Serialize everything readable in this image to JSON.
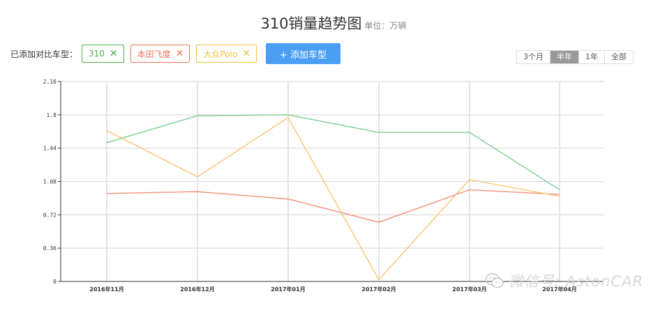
{
  "header": {
    "title": "310销量趋势图",
    "unit": "单位：万辆"
  },
  "controls": {
    "added_label": "已添加对比车型：",
    "chips": [
      {
        "label": "310",
        "color": "#4cae4c"
      },
      {
        "label": "本田飞度",
        "color": "#e8765a"
      },
      {
        "label": "大众Polo",
        "color": "#f0c040"
      }
    ],
    "remove_glyph": "✕",
    "add_button": "+ 添加车型"
  },
  "range_tabs": {
    "items": [
      "3个月",
      "半年",
      "1年",
      "全部"
    ],
    "active_index": 1
  },
  "chart_data": {
    "type": "line",
    "title": "310销量趋势图",
    "unit": "单位：万辆",
    "categories": [
      "2016年11月",
      "2016年12月",
      "2017年01月",
      "2017年02月",
      "2017年03月",
      "2017年04月"
    ],
    "yticks": [
      "0",
      "0.36",
      "0.72",
      "1.08",
      "1.44",
      "1.8",
      "2.16"
    ],
    "ylim": [
      0,
      2.16
    ],
    "grid": true,
    "series": [
      {
        "name": "310",
        "color": "#7ccd8c",
        "values": [
          1.5,
          1.79,
          1.8,
          1.61,
          1.61,
          0.99
        ]
      },
      {
        "name": "本田飞度",
        "color": "#f0907a",
        "values": [
          0.95,
          0.97,
          0.89,
          0.64,
          0.99,
          0.94
        ]
      },
      {
        "name": "大众Polo",
        "color": "#fbc270",
        "values": [
          1.63,
          1.13,
          1.77,
          0.02,
          1.1,
          0.92
        ]
      }
    ]
  },
  "watermark": {
    "text": "微信号: AstonCAR",
    "icon": "wechat-icon"
  }
}
